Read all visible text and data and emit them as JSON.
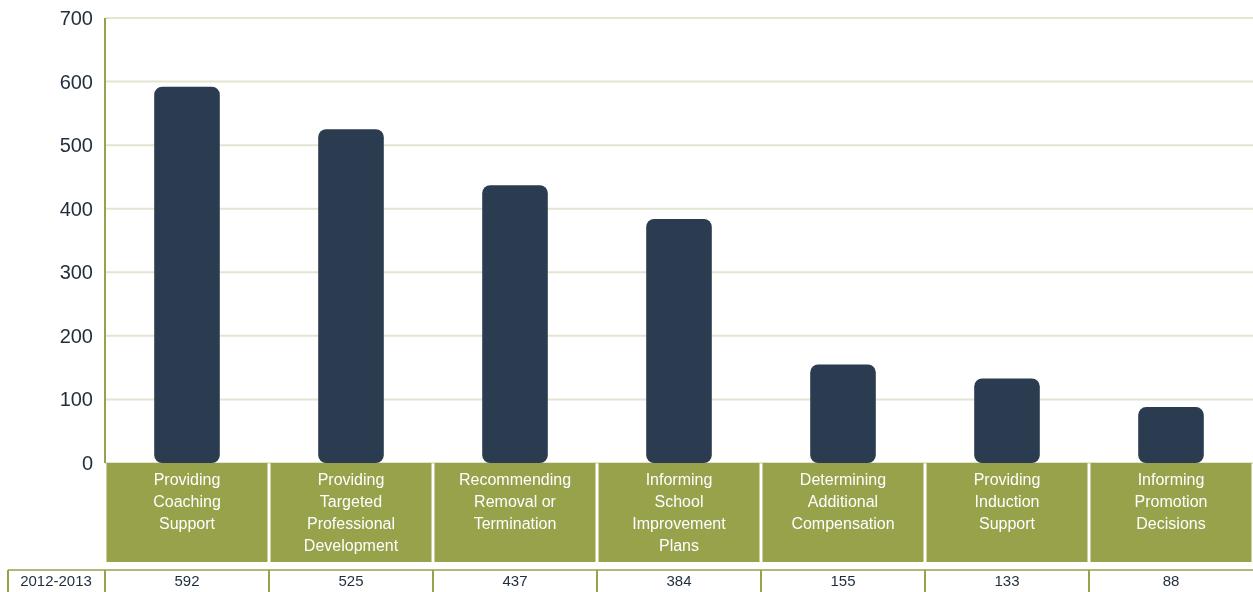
{
  "chart_data": {
    "type": "bar",
    "categories": [
      "Providing Coaching Support",
      "Providing Targeted Professional Development",
      "Recommending Removal or Termination",
      "Informing School Improvement Plans",
      "Determining Additional Compensation",
      "Providing Induction Support",
      "Informing Promotion Decisions"
    ],
    "series": [
      {
        "name": "2012-2013",
        "color": "#2b3b50",
        "values": [
          592,
          525,
          437,
          384,
          155,
          133,
          88
        ]
      }
    ],
    "ylim": [
      0,
      700
    ],
    "yticks": [
      0,
      100,
      200,
      300,
      400,
      500,
      600,
      700
    ],
    "grid": "y",
    "data_labels": true
  }
}
